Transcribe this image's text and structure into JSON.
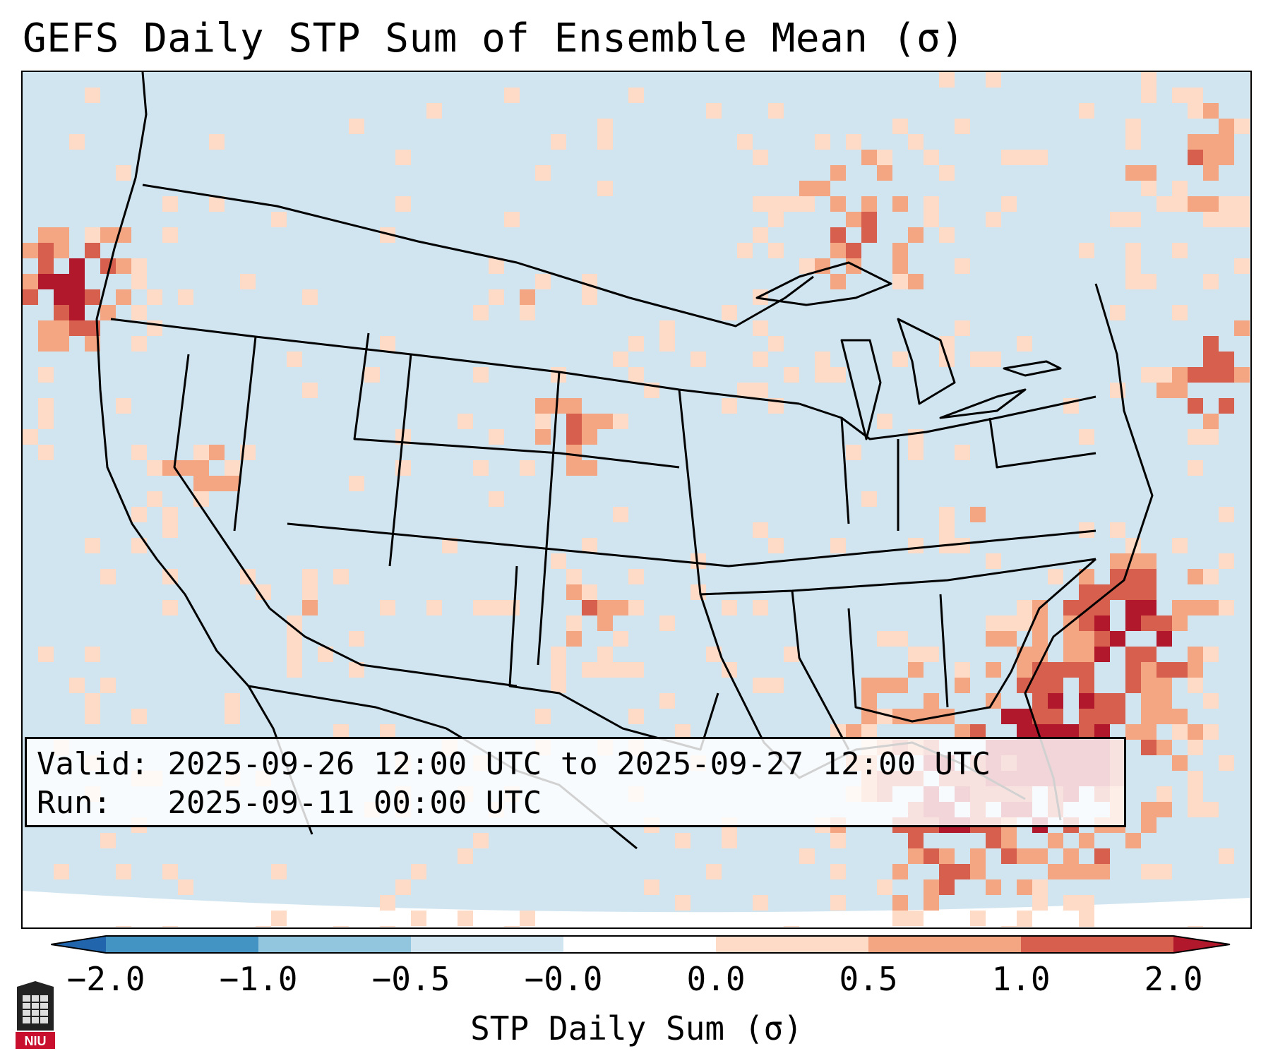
{
  "title": "GEFS Daily STP Sum of Ensemble Mean (σ)",
  "info": {
    "valid_label": "Valid:",
    "valid_value": "2025-09-26 12:00 UTC to 2025-09-27 12:00 UTC",
    "run_label": "Run:",
    "run_value": "2025-09-11 00:00 UTC"
  },
  "colorbar": {
    "label": "STP Daily Sum (σ)",
    "ticks": [
      "−2.0",
      "−1.0",
      "−0.5",
      "−0.0",
      "0.0",
      "0.5",
      "1.0",
      "2.0"
    ],
    "colors": [
      "#2166ac",
      "#4393c3",
      "#92c5de",
      "#d1e5f0",
      "#fddbc7",
      "#f4a582",
      "#d6604d",
      "#b2182b"
    ],
    "extend": "both"
  },
  "map": {
    "background_color": "#d1e5f0",
    "region": "Contiguous United States"
  },
  "logo": {
    "text": "NIU",
    "color": "#c8102e"
  }
}
